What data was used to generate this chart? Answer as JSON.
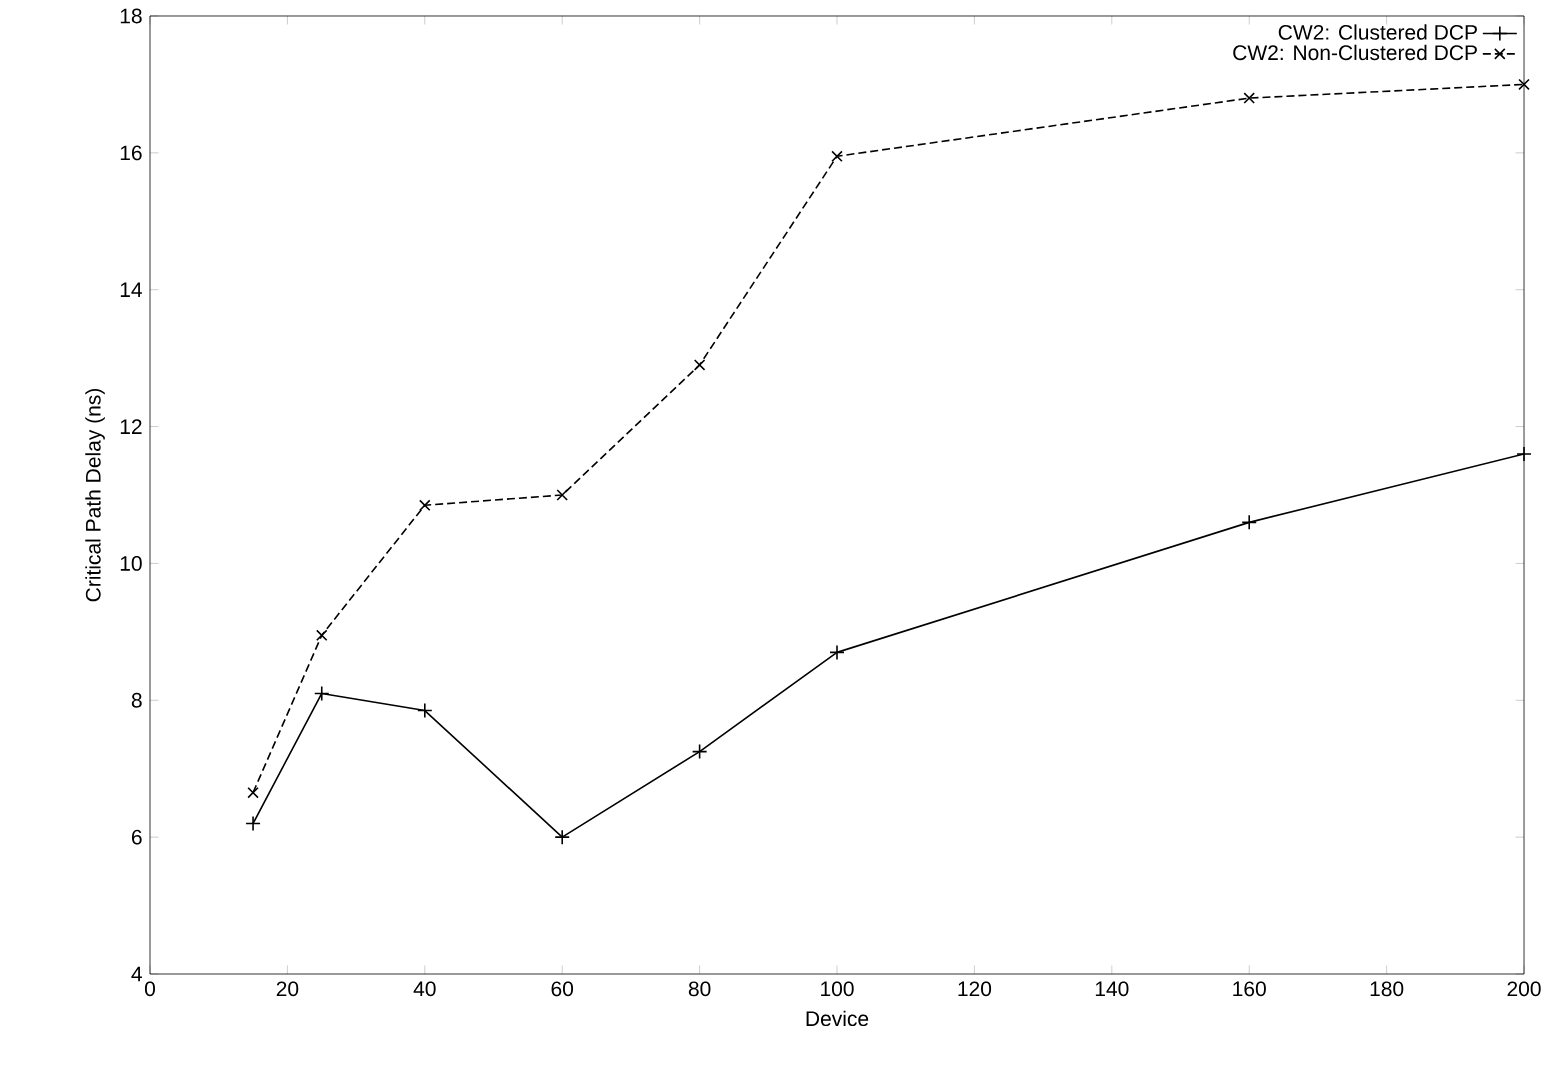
{
  "chart_data": {
    "type": "line",
    "xlabel": "Device",
    "ylabel": "Critical Path Delay (ns)",
    "xlim": [
      0,
      200
    ],
    "xticks": [
      0,
      20,
      40,
      60,
      80,
      100,
      120,
      140,
      160,
      180,
      200
    ],
    "ylim": [
      4,
      18
    ],
    "yticks": [
      4,
      6,
      8,
      10,
      12,
      14,
      16,
      18
    ],
    "grid": false,
    "legend": "top right",
    "x": [
      15,
      25,
      40,
      60,
      80,
      100,
      160,
      200
    ],
    "series": [
      {
        "name": "CW2: Clustered DCP",
        "color": "#000000",
        "marker": "plus",
        "line_style": "solid",
        "values": [
          6.2,
          8.1,
          7.85,
          6.0,
          7.25,
          8.7,
          10.6,
          11.6
        ]
      },
      {
        "name": "CW2: Non-Clustered DCP",
        "color": "#000000",
        "marker": "cross",
        "line_style": "dashed",
        "values": [
          6.65,
          8.95,
          10.85,
          11.0,
          12.9,
          15.95,
          16.8,
          17.0
        ]
      }
    ]
  }
}
